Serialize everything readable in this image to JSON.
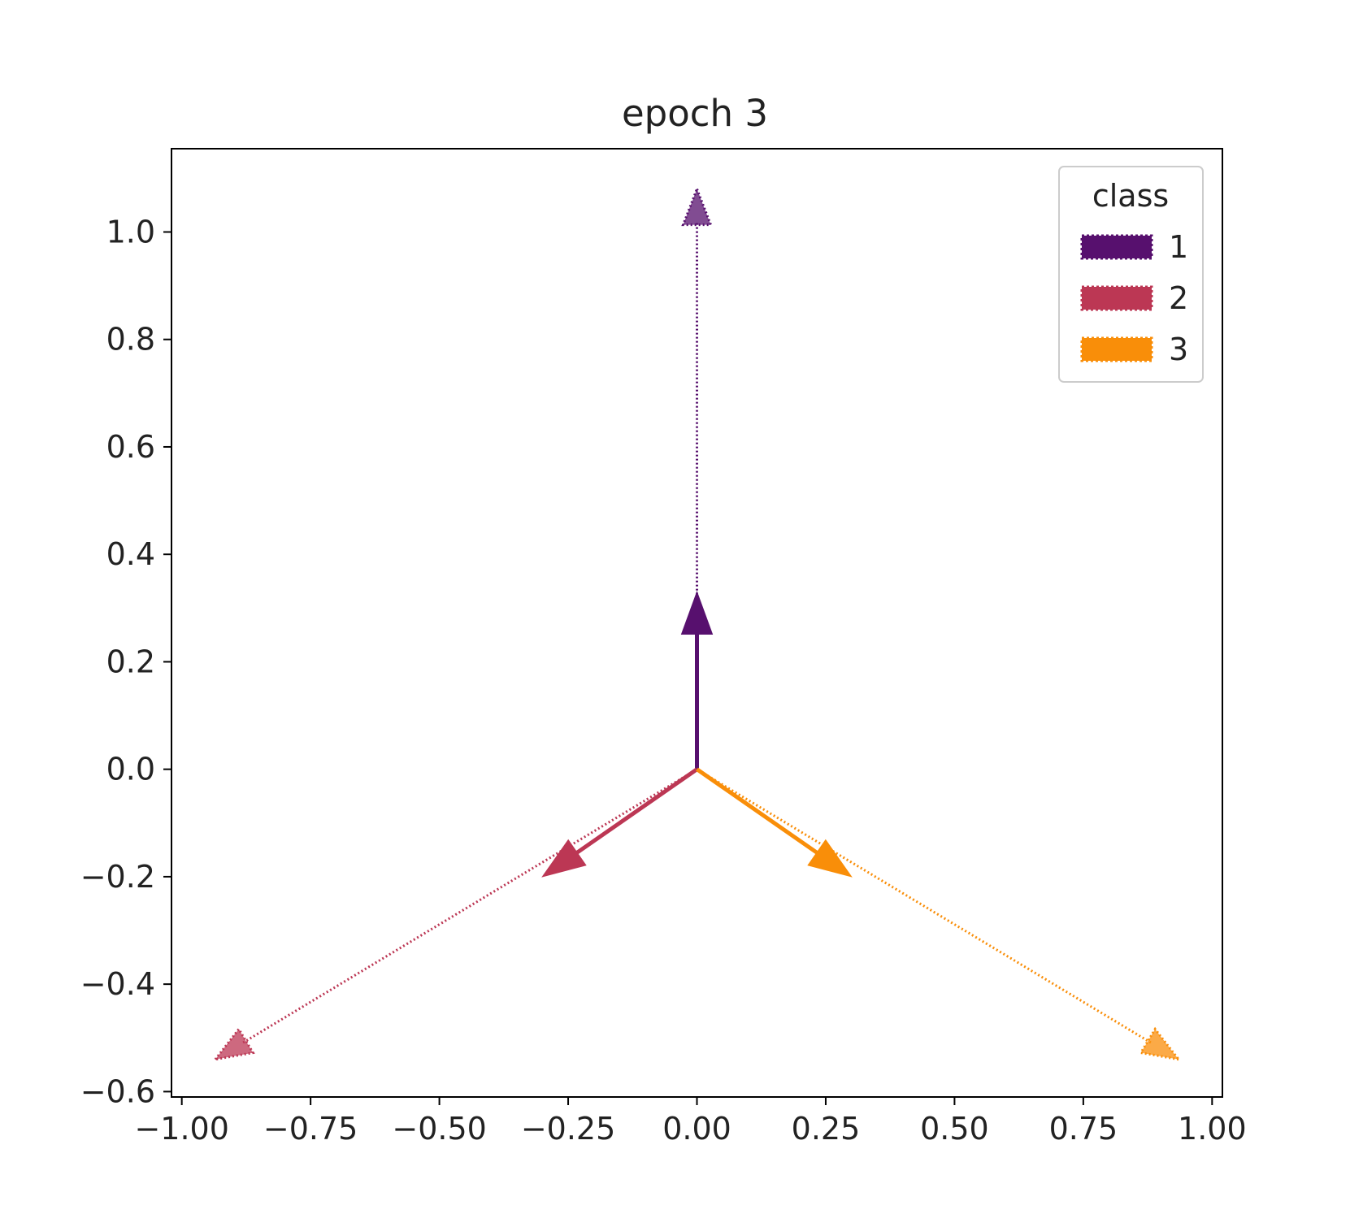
{
  "chart_data": {
    "type": "quiver",
    "title": "epoch 3",
    "xlabel": "",
    "ylabel": "",
    "xlim": [
      -1.02,
      1.02
    ],
    "ylim": [
      -0.61,
      1.155
    ],
    "xticks": [
      {
        "value": -1.0,
        "label": "−1.00"
      },
      {
        "value": -0.75,
        "label": "−0.75"
      },
      {
        "value": -0.5,
        "label": "−0.50"
      },
      {
        "value": -0.25,
        "label": "−0.25"
      },
      {
        "value": 0.0,
        "label": "0.00"
      },
      {
        "value": 0.25,
        "label": "0.25"
      },
      {
        "value": 0.5,
        "label": "0.50"
      },
      {
        "value": 0.75,
        "label": "0.75"
      },
      {
        "value": 1.0,
        "label": "1.00"
      }
    ],
    "yticks": [
      {
        "value": -0.6,
        "label": "−0.6"
      },
      {
        "value": -0.4,
        "label": "−0.4"
      },
      {
        "value": -0.2,
        "label": "−0.2"
      },
      {
        "value": 0.0,
        "label": "0.0"
      },
      {
        "value": 0.2,
        "label": "0.2"
      },
      {
        "value": 0.4,
        "label": "0.4"
      },
      {
        "value": 0.6,
        "label": "0.6"
      },
      {
        "value": 0.8,
        "label": "0.8"
      },
      {
        "value": 1.0,
        "label": "1.0"
      }
    ],
    "grid": false,
    "legend": {
      "title": "class",
      "position": "top-right"
    },
    "series": [
      {
        "name": "1",
        "color": "#57106e",
        "solid": {
          "x0": 0,
          "y0": 0,
          "x1": 0.0,
          "y1": 0.33
        },
        "dotted": {
          "x0": 0,
          "y0": 0,
          "x1": 0.0,
          "y1": 1.08
        }
      },
      {
        "name": "2",
        "color": "#bc3754",
        "solid": {
          "x0": 0,
          "y0": 0,
          "x1": -0.3,
          "y1": -0.2
        },
        "dotted": {
          "x0": 0,
          "y0": 0,
          "x1": -0.935,
          "y1": -0.54
        }
      },
      {
        "name": "3",
        "color": "#f98e09",
        "solid": {
          "x0": 0,
          "y0": 0,
          "x1": 0.3,
          "y1": -0.2
        },
        "dotted": {
          "x0": 0,
          "y0": 0,
          "x1": 0.935,
          "y1": -0.54
        }
      }
    ]
  }
}
